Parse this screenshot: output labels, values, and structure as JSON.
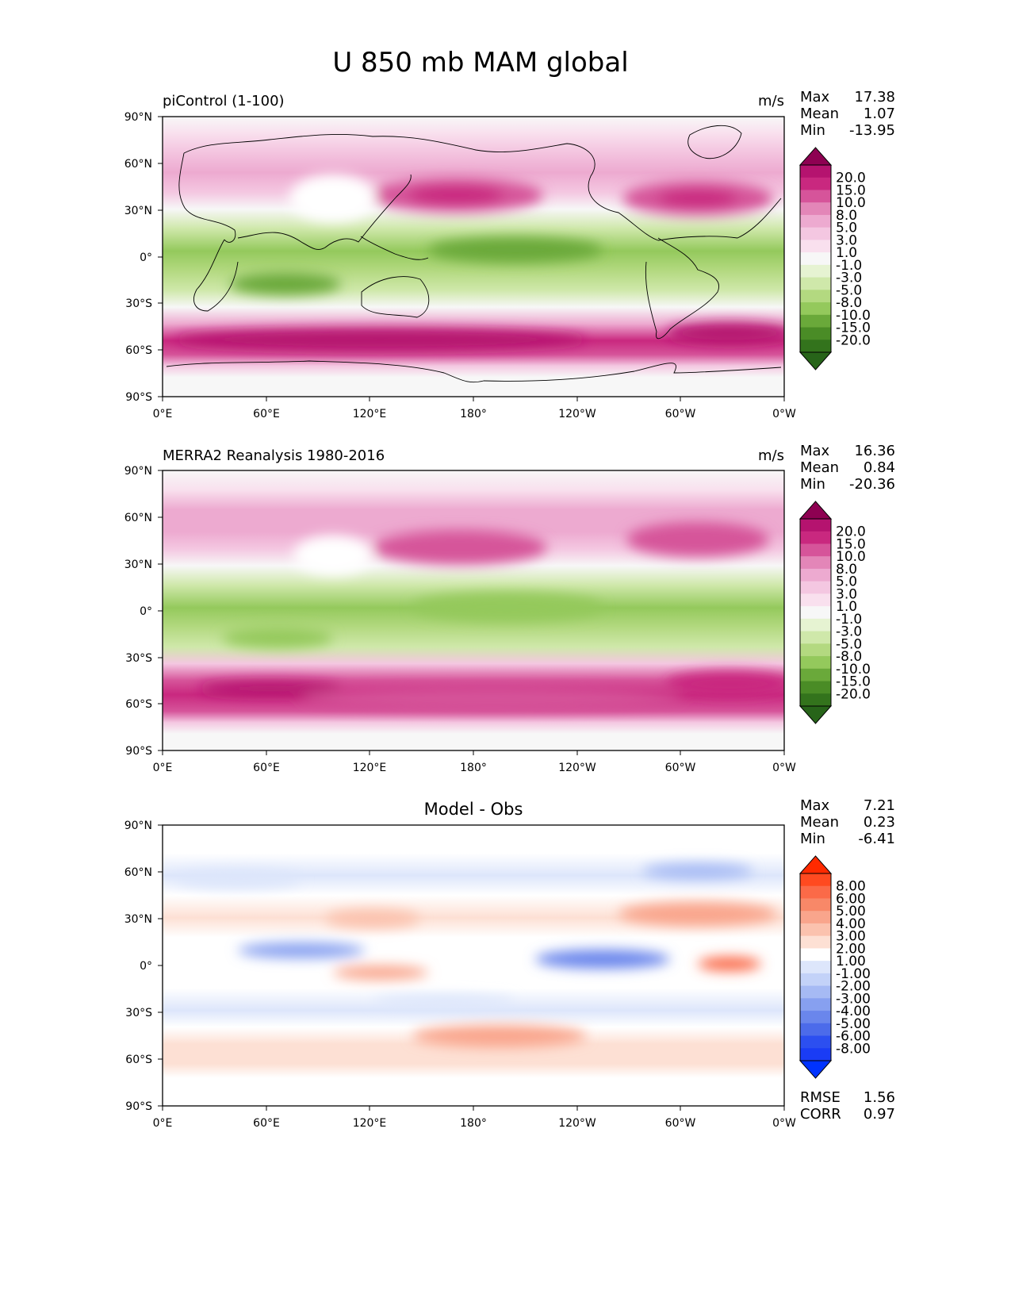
{
  "figure": {
    "title": "U 850 mb MAM global",
    "x_ticks": [
      "0°E",
      "60°E",
      "120°E",
      "180°",
      "120°W",
      "60°W",
      "0°W"
    ],
    "y_ticks": [
      "90°N",
      "60°N",
      "30°N",
      "0°",
      "30°S",
      "60°S",
      "90°S"
    ]
  },
  "panels": [
    {
      "id": "model",
      "title_left": "piControl (1-100)",
      "title_center": "",
      "units": "m/s",
      "stats": [
        {
          "label": "Max",
          "value": "17.38"
        },
        {
          "label": "Mean",
          "value": "1.07"
        },
        {
          "label": "Min",
          "value": "-13.95"
        }
      ],
      "colorbar": {
        "labels": [
          "20.0",
          "15.0",
          "10.0",
          "8.0",
          "5.0",
          "3.0",
          "1.0",
          "-1.0",
          "-3.0",
          "-5.0",
          "-8.0",
          "-10.0",
          "-15.0",
          "-20.0"
        ],
        "over_color": "#8e0152",
        "under_color": "#276419",
        "colors": [
          "#b5136f",
          "#c9287f",
          "#d6549a",
          "#e386b8",
          "#edaad0",
          "#f4c7e1",
          "#f9e0ee",
          "#f7f7f7",
          "#e6f3d2",
          "#cfe8aa",
          "#b3d980",
          "#94c95c",
          "#6aa93a",
          "#4a8c26",
          "#33731c"
        ]
      },
      "footer": []
    },
    {
      "id": "obs",
      "title_left": "MERRA2 Reanalysis 1980-2016",
      "title_center": "",
      "units": "m/s",
      "stats": [
        {
          "label": "Max",
          "value": "16.36"
        },
        {
          "label": "Mean",
          "value": "0.84"
        },
        {
          "label": "Min",
          "value": "-20.36"
        }
      ],
      "colorbar": {
        "labels": [
          "20.0",
          "15.0",
          "10.0",
          "8.0",
          "5.0",
          "3.0",
          "1.0",
          "-1.0",
          "-3.0",
          "-5.0",
          "-8.0",
          "-10.0",
          "-15.0",
          "-20.0"
        ],
        "over_color": "#8e0152",
        "under_color": "#276419",
        "colors": [
          "#b5136f",
          "#c9287f",
          "#d6549a",
          "#e386b8",
          "#edaad0",
          "#f4c7e1",
          "#f9e0ee",
          "#f7f7f7",
          "#e6f3d2",
          "#cfe8aa",
          "#b3d980",
          "#94c95c",
          "#6aa93a",
          "#4a8c26",
          "#33731c"
        ]
      },
      "footer": []
    },
    {
      "id": "diff",
      "title_left": "",
      "title_center": "Model - Obs",
      "units": "",
      "stats": [
        {
          "label": "Max",
          "value": "7.21"
        },
        {
          "label": "Mean",
          "value": "0.23"
        },
        {
          "label": "Min",
          "value": "-6.41"
        }
      ],
      "colorbar": {
        "labels": [
          "8.00",
          "6.00",
          "5.00",
          "4.00",
          "3.00",
          "2.00",
          "1.00",
          "-1.00",
          "-2.00",
          "-3.00",
          "-4.00",
          "-5.00",
          "-6.00",
          "-8.00"
        ],
        "over_color": "#ff2a00",
        "under_color": "#0033ff",
        "colors": [
          "#ff4a20",
          "#fb6a48",
          "#f88868",
          "#f9a58c",
          "#fbc2ae",
          "#fde0d4",
          "#ffffff",
          "#dde6fb",
          "#c3d2f8",
          "#a6baf4",
          "#87a0f0",
          "#6a86ec",
          "#4c6bea",
          "#2c4ff0",
          "#1a3cf5"
        ]
      },
      "footer": [
        {
          "label": "RMSE",
          "value": "1.56"
        },
        {
          "label": "CORR",
          "value": "0.97"
        }
      ]
    }
  ]
}
